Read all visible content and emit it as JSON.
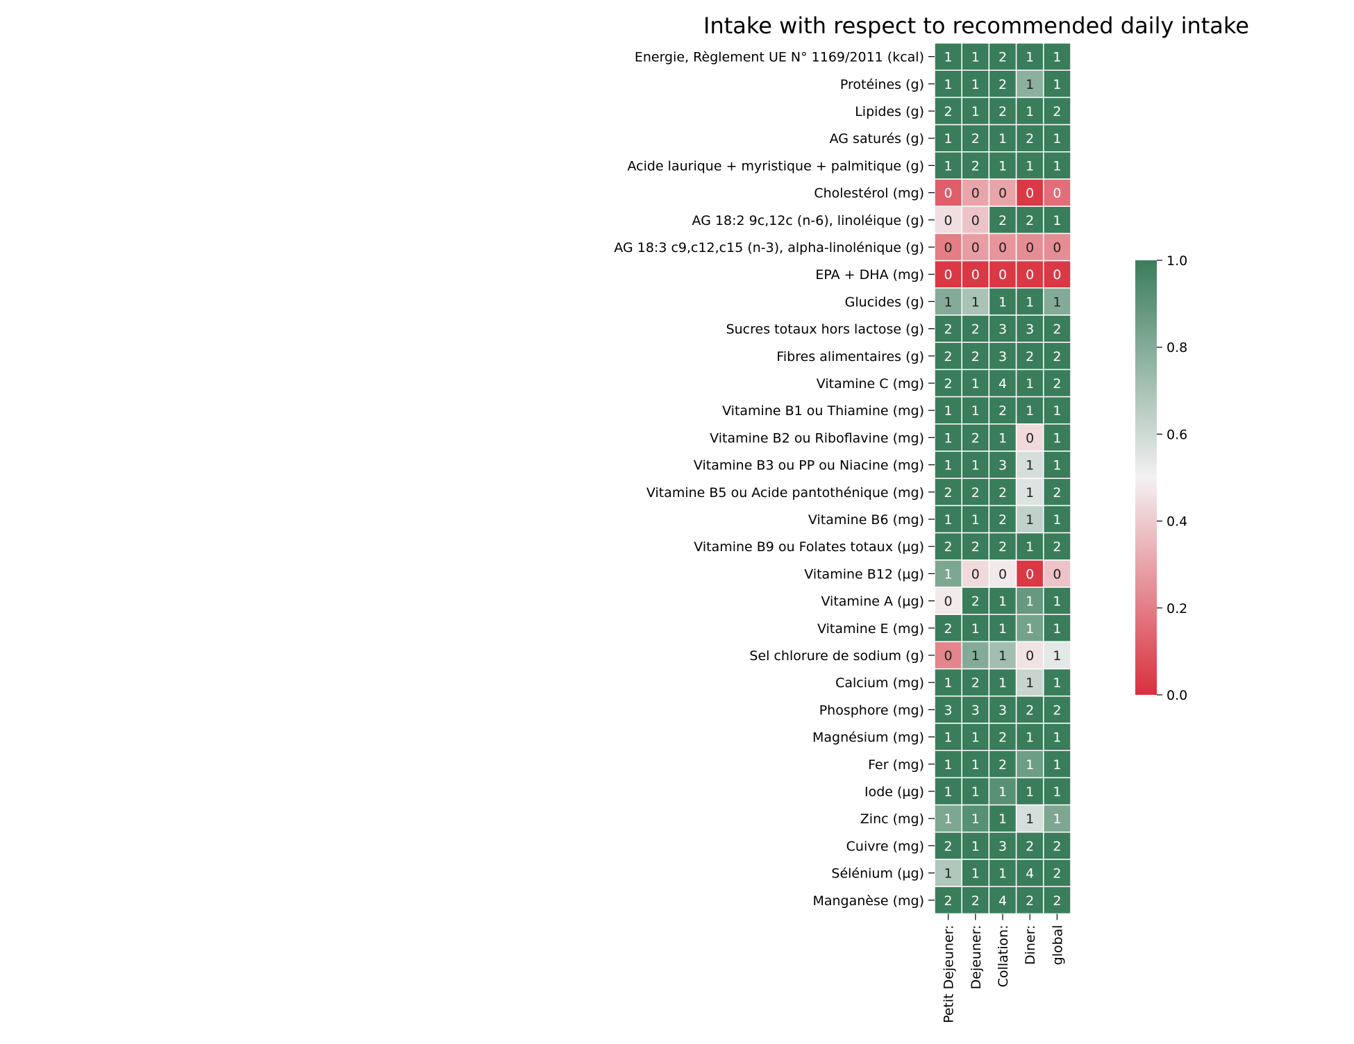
{
  "chart_data": {
    "type": "heatmap",
    "title": "Intake with respect to recommended daily intake",
    "columns": [
      "Petit Dejeuner:",
      "Dejeuner:",
      "Collation:",
      "Diner:",
      "global"
    ],
    "rows": [
      "Energie, Règlement UE N° 1169/2011 (kcal)",
      "Protéines (g)",
      "Lipides (g)",
      "AG saturés (g)",
      "Acide laurique + myristique + palmitique (g)",
      "Cholestérol (mg)",
      "AG 18:2 9c,12c (n-6), linoléique (g)",
      "AG 18:3 c9,c12,c15 (n-3), alpha-linolénique (g)",
      "EPA + DHA (mg)",
      "Glucides (g)",
      "Sucres  totaux hors lactose (g)",
      "Fibres alimentaires (g)",
      "Vitamine C (mg)",
      "Vitamine B1 ou Thiamine (mg)",
      "Vitamine B2 ou Riboflavine (mg)",
      "Vitamine B3 ou PP ou Niacine (mg)",
      "Vitamine B5 ou Acide pantothénique (mg)",
      "Vitamine B6 (mg)",
      "Vitamine B9 ou Folates totaux (µg)",
      "Vitamine B12 (µg)",
      "Vitamine A  (µg)",
      "Vitamine E (mg)",
      "Sel chlorure de sodium (g)",
      "Calcium (mg)",
      "Phosphore (mg)",
      "Magnésium (mg)",
      "Fer (mg)",
      "Iode (µg)",
      "Zinc (mg)",
      "Cuivre (mg)",
      "Sélénium (µg)",
      "Manganèse (mg)"
    ],
    "values": [
      [
        1.0,
        1.0,
        2.0,
        1.0,
        1.0
      ],
      [
        1.0,
        1.0,
        2.0,
        0.78,
        1.0
      ],
      [
        2.0,
        1.0,
        2.0,
        1.0,
        2.0
      ],
      [
        1.0,
        2.0,
        1.0,
        2.0,
        1.0
      ],
      [
        1.0,
        2.0,
        1.0,
        1.0,
        1.0
      ],
      [
        0.12,
        0.3,
        0.3,
        0.02,
        0.16
      ],
      [
        0.45,
        0.38,
        2.0,
        2.0,
        1.0
      ],
      [
        0.2,
        0.28,
        0.26,
        0.24,
        0.24
      ],
      [
        0.02,
        0.02,
        0.02,
        0.02,
        0.02
      ],
      [
        0.8,
        0.7,
        1.0,
        1.0,
        0.8
      ],
      [
        2.0,
        2.0,
        3.0,
        3.0,
        2.0
      ],
      [
        2.0,
        2.0,
        3.0,
        2.0,
        2.0
      ],
      [
        2.0,
        1.0,
        4.0,
        1.0,
        2.0
      ],
      [
        1.0,
        1.0,
        2.0,
        1.0,
        1.0
      ],
      [
        1.0,
        2.0,
        1.0,
        0.44,
        1.0
      ],
      [
        1.0,
        1.0,
        3.0,
        0.58,
        1.0
      ],
      [
        2.0,
        2.0,
        2.0,
        0.56,
        2.0
      ],
      [
        1.0,
        1.0,
        2.0,
        0.64,
        1.0
      ],
      [
        2.0,
        2.0,
        2.0,
        1.0,
        2.0
      ],
      [
        0.82,
        0.44,
        0.48,
        0.02,
        0.38
      ],
      [
        0.48,
        2.0,
        1.0,
        0.88,
        1.0
      ],
      [
        2.0,
        1.0,
        1.0,
        0.84,
        1.0
      ],
      [
        0.22,
        0.8,
        0.72,
        0.46,
        0.54
      ],
      [
        1.0,
        2.0,
        1.0,
        0.62,
        1.0
      ],
      [
        3.0,
        3.0,
        3.0,
        2.0,
        2.0
      ],
      [
        1.0,
        1.0,
        2.0,
        1.0,
        1.0
      ],
      [
        1.0,
        1.0,
        2.0,
        0.86,
        1.0
      ],
      [
        1.0,
        1.0,
        0.92,
        1.0,
        1.0
      ],
      [
        0.82,
        0.92,
        1.0,
        0.58,
        0.82
      ],
      [
        2.0,
        1.0,
        3.0,
        2.0,
        2.0
      ],
      [
        0.68,
        1.0,
        1.0,
        4.0,
        2.0
      ],
      [
        2.0,
        2.0,
        4.0,
        2.0,
        2.0
      ]
    ],
    "annotations": [
      [
        "1",
        "1",
        "2",
        "1",
        "1"
      ],
      [
        "1",
        "1",
        "2",
        "1",
        "1"
      ],
      [
        "2",
        "1",
        "2",
        "1",
        "2"
      ],
      [
        "1",
        "2",
        "1",
        "2",
        "1"
      ],
      [
        "1",
        "2",
        "1",
        "1",
        "1"
      ],
      [
        "0",
        "0",
        "0",
        "0",
        "0"
      ],
      [
        "0",
        "0",
        "2",
        "2",
        "1"
      ],
      [
        "0",
        "0",
        "0",
        "0",
        "0"
      ],
      [
        "0",
        "0",
        "0",
        "0",
        "0"
      ],
      [
        "1",
        "1",
        "1",
        "1",
        "1"
      ],
      [
        "2",
        "2",
        "3",
        "3",
        "2"
      ],
      [
        "2",
        "2",
        "3",
        "2",
        "2"
      ],
      [
        "2",
        "1",
        "4",
        "1",
        "2"
      ],
      [
        "1",
        "1",
        "2",
        "1",
        "1"
      ],
      [
        "1",
        "2",
        "1",
        "0",
        "1"
      ],
      [
        "1",
        "1",
        "3",
        "1",
        "1"
      ],
      [
        "2",
        "2",
        "2",
        "1",
        "2"
      ],
      [
        "1",
        "1",
        "2",
        "1",
        "1"
      ],
      [
        "2",
        "2",
        "2",
        "1",
        "2"
      ],
      [
        "1",
        "0",
        "0",
        "0",
        "0"
      ],
      [
        "0",
        "2",
        "1",
        "1",
        "1"
      ],
      [
        "2",
        "1",
        "1",
        "1",
        "1"
      ],
      [
        "0",
        "1",
        "1",
        "0",
        "1"
      ],
      [
        "1",
        "2",
        "1",
        "1",
        "1"
      ],
      [
        "3",
        "3",
        "3",
        "2",
        "2"
      ],
      [
        "1",
        "1",
        "2",
        "1",
        "1"
      ],
      [
        "1",
        "1",
        "2",
        "1",
        "1"
      ],
      [
        "1",
        "1",
        "1",
        "1",
        "1"
      ],
      [
        "1",
        "1",
        "1",
        "1",
        "1"
      ],
      [
        "2",
        "1",
        "3",
        "2",
        "2"
      ],
      [
        "1",
        "1",
        "1",
        "4",
        "2"
      ],
      [
        "2",
        "2",
        "4",
        "2",
        "2"
      ]
    ],
    "color_scale": {
      "vmin": 0.0,
      "vmax": 1.0,
      "low_color": "#d9303e",
      "mid_color": "#f3f1f2",
      "high_color": "#3a7d5b"
    },
    "colorbar_ticks": [
      "0.0",
      "0.2",
      "0.4",
      "0.6",
      "0.8",
      "1.0"
    ],
    "legend": "colorbar-right",
    "grid": false
  }
}
